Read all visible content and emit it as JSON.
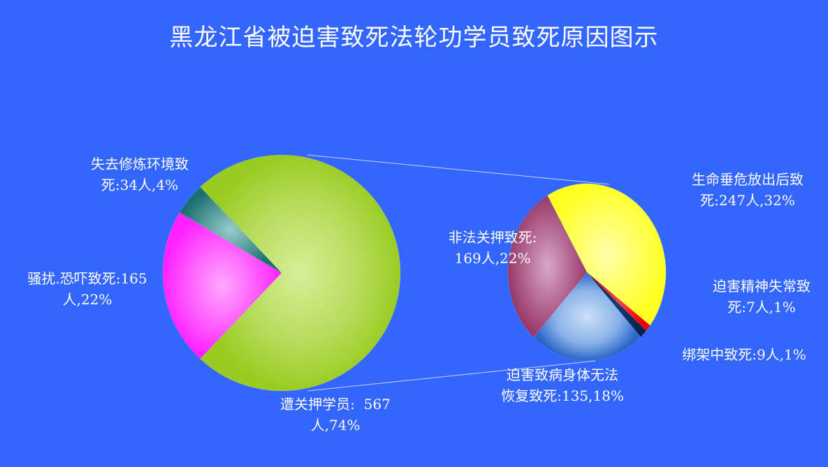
{
  "chart_data": {
    "type": "pie-of-pie",
    "title": "黑龙江省被迫害致死法轮功学员致死原因图示",
    "main_pie": [
      {
        "label_line1": "遭关押学员:  567",
        "label_line2": "人,74%",
        "value": 567,
        "percent": 74,
        "color": "#99cc22",
        "expanded": true
      },
      {
        "label_line1": "骚扰.恐吓致死:165",
        "label_line2": "人,22%",
        "value": 165,
        "percent": 22,
        "color": "#ff33ff"
      },
      {
        "label_line1": "失去修炼环境致",
        "label_line2": "死:34人,4%",
        "value": 34,
        "percent": 4,
        "color": "#2a8a8a"
      }
    ],
    "secondary_pie": [
      {
        "label_line1": "生命垂危放出后致",
        "label_line2": "死:247人,32%",
        "value": 247,
        "percent": 32,
        "color": "#ffff33"
      },
      {
        "label_line1": "迫害精神失常致",
        "label_line2": "死:7人,1%",
        "value": 7,
        "percent": 1,
        "color": "#ff0000"
      },
      {
        "label_line1": "绑架中致死:9人,1%",
        "label_line2": "",
        "value": 9,
        "percent": 1,
        "color": "#0a2a66"
      },
      {
        "label_line1": "迫害致病身体无法",
        "label_line2": "恢复致死:135,18%",
        "value": 135,
        "percent": 18,
        "color": "#3a78d8"
      },
      {
        "label_line1": "非法关押致死:",
        "label_line2": "169人,22%",
        "value": 169,
        "percent": 22,
        "color": "#a03c70"
      }
    ],
    "background": "#3366ff"
  }
}
